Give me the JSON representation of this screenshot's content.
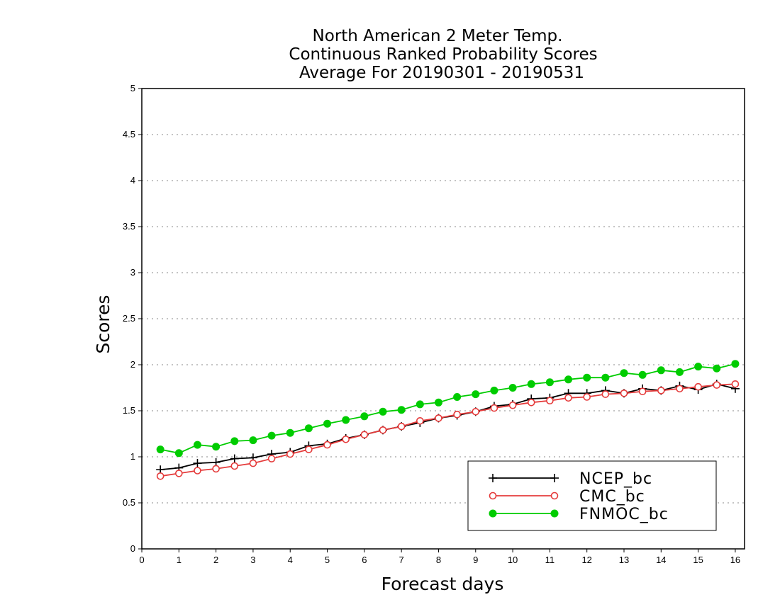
{
  "chart_data": {
    "type": "line",
    "title_lines": [
      "North American 2 Meter Temp.",
      "Continuous Ranked Probability Scores",
      "Average For 20190301 - 20190531"
    ],
    "xlabel": "Forecast days",
    "ylabel": "Scores",
    "xlim": [
      0,
      16.25
    ],
    "ylim": [
      0,
      5
    ],
    "x_ticks": [
      0,
      1,
      2,
      3,
      4,
      5,
      6,
      7,
      8,
      9,
      10,
      11,
      12,
      13,
      14,
      15,
      16
    ],
    "y_ticks": [
      0,
      0.5,
      1,
      1.5,
      2,
      2.5,
      3,
      3.5,
      4,
      4.5,
      5
    ],
    "y_tick_labels": [
      "0",
      "0.5",
      "1",
      "1.5",
      "2",
      "2.5",
      "3",
      "3.5",
      "4",
      "4.5",
      "5"
    ],
    "grid": "horizontal dotted",
    "legend_position": "bottom-right",
    "x": [
      0.5,
      1,
      1.5,
      2,
      2.5,
      3,
      3.5,
      4,
      4.5,
      5,
      5.5,
      6,
      6.5,
      7,
      7.5,
      8,
      8.5,
      9,
      9.5,
      10,
      10.5,
      11,
      11.5,
      12,
      12.5,
      13,
      13.5,
      14,
      14.5,
      15,
      15.5,
      16
    ],
    "series": [
      {
        "name": "NCEP_bc",
        "color": "#000000",
        "marker": "plus",
        "values": [
          0.86,
          0.88,
          0.93,
          0.94,
          0.98,
          0.99,
          1.03,
          1.05,
          1.12,
          1.14,
          1.2,
          1.24,
          1.29,
          1.33,
          1.37,
          1.42,
          1.45,
          1.49,
          1.55,
          1.57,
          1.63,
          1.64,
          1.69,
          1.69,
          1.72,
          1.69,
          1.74,
          1.72,
          1.77,
          1.73,
          1.79,
          1.74
        ]
      },
      {
        "name": "CMC_bc",
        "color": "#e53b3b",
        "marker": "open-circle",
        "values": [
          0.79,
          0.82,
          0.85,
          0.87,
          0.9,
          0.93,
          0.98,
          1.03,
          1.08,
          1.13,
          1.19,
          1.24,
          1.29,
          1.33,
          1.39,
          1.42,
          1.46,
          1.49,
          1.53,
          1.56,
          1.59,
          1.61,
          1.64,
          1.65,
          1.68,
          1.69,
          1.71,
          1.72,
          1.74,
          1.76,
          1.78,
          1.79
        ]
      },
      {
        "name": "FNMOC_bc",
        "color": "#00cc00",
        "marker": "filled-circle",
        "values": [
          1.08,
          1.04,
          1.13,
          1.11,
          1.17,
          1.18,
          1.23,
          1.26,
          1.31,
          1.36,
          1.4,
          1.44,
          1.49,
          1.51,
          1.57,
          1.59,
          1.65,
          1.68,
          1.72,
          1.75,
          1.79,
          1.81,
          1.84,
          1.86,
          1.86,
          1.91,
          1.89,
          1.94,
          1.92,
          1.98,
          1.96,
          2.01
        ]
      }
    ]
  }
}
